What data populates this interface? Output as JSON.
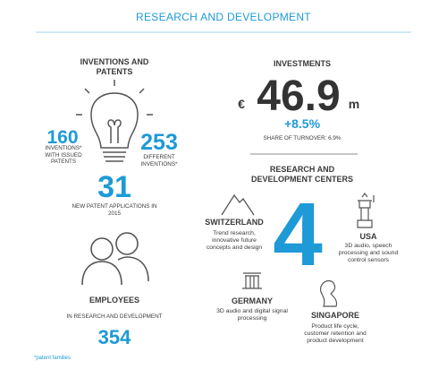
{
  "title": "RESEARCH AND DEVELOPMENT",
  "inventions": {
    "heading": "INVENTIONS AND PATENTS",
    "issued": {
      "value": "160",
      "label": "INVENTIONS* WITH ISSUED PATENTS"
    },
    "different": {
      "value": "253",
      "label": "DIFFERENT INVENTIONS*"
    },
    "applications": {
      "value": "31",
      "label": "NEW PATENT APPLICATIONS IN 2015"
    }
  },
  "employees": {
    "heading": "EMPLOYEES",
    "label": "IN RESEARCH AND DEVELOPMENT",
    "value": "354"
  },
  "investments": {
    "heading": "INVESTMENTS",
    "currency": "€",
    "value": "46.9",
    "unit": "m",
    "change": "+8.5%",
    "share": "SHARE OF TURNOVER: 6.9%"
  },
  "centers": {
    "heading": "RESEARCH AND DEVELOPMENT CENTERS",
    "count": "4",
    "items": [
      {
        "name": "SWITZERLAND",
        "description": "Trend research, innovative future concepts and design"
      },
      {
        "name": "USA",
        "description": "3D audio, speech processing and sound control sensors"
      },
      {
        "name": "GERMANY",
        "description": "3D audio and digital signal processing"
      },
      {
        "name": "SINGAPORE",
        "description": "Product life cycle, customer retention and product development"
      }
    ]
  },
  "footnote": "*patent families"
}
